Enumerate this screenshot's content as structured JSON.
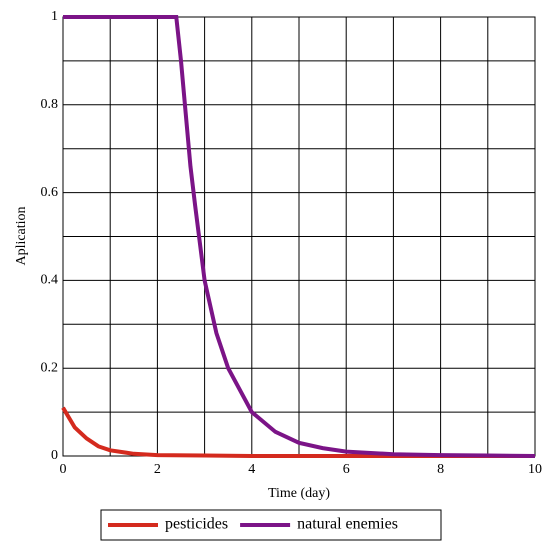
{
  "chart_data": {
    "type": "line",
    "x_label": "Time (day)",
    "y_label": "Aplication",
    "xlim": [
      0,
      10
    ],
    "ylim": [
      0,
      1
    ],
    "xticks": [
      0,
      2,
      4,
      6,
      8,
      10
    ],
    "yticks": [
      0,
      0.2,
      0.4,
      0.6,
      0.8,
      1
    ],
    "grid": true,
    "legend": "bottom",
    "series": [
      {
        "name": "pesticides",
        "color": "#d42a1e",
        "x": [
          0,
          0.25,
          0.5,
          0.75,
          1,
          1.5,
          2,
          3,
          4,
          10
        ],
        "values": [
          0.11,
          0.065,
          0.04,
          0.022,
          0.013,
          0.005,
          0.002,
          0.001,
          0,
          0
        ]
      },
      {
        "name": "natural enemies",
        "color": "#7b1487",
        "x": [
          0,
          2.4,
          2.5,
          2.6,
          2.7,
          2.8,
          3,
          3.25,
          3.5,
          4,
          4.5,
          5,
          5.5,
          6,
          7,
          8,
          9,
          10
        ],
        "values": [
          1,
          1,
          0.9,
          0.78,
          0.66,
          0.57,
          0.4,
          0.28,
          0.2,
          0.1,
          0.055,
          0.03,
          0.018,
          0.01,
          0.004,
          0.002,
          0.001,
          0
        ]
      }
    ]
  }
}
